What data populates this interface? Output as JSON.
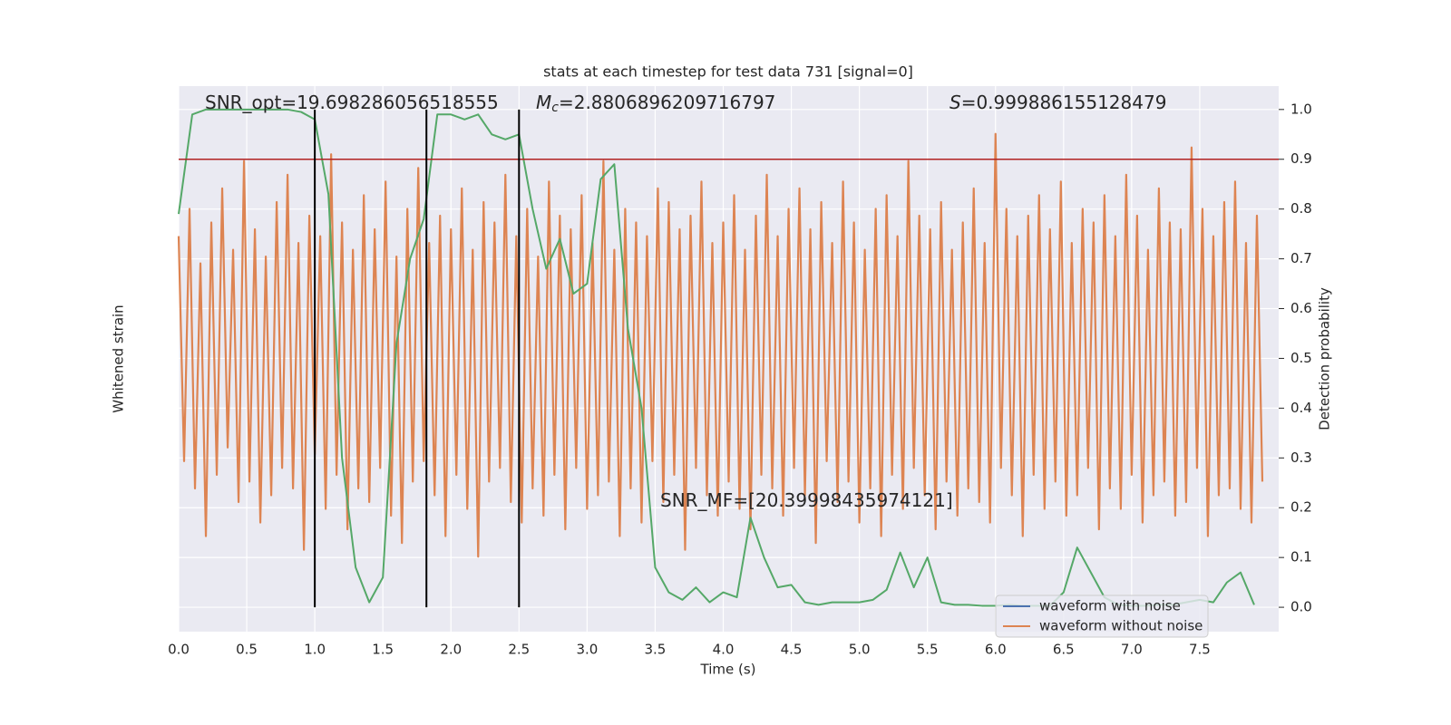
{
  "chart_data": {
    "type": "line",
    "title": "stats at each timestep for test data 731 [signal=0]",
    "xlabel": "Time (s)",
    "ylabel": "Whitened strain",
    "y2label": "Detection probability",
    "xlim": [
      0,
      8.08
    ],
    "xticks": [
      {
        "value": 0,
        "label": "0.0"
      },
      0.5,
      {
        "value": 1,
        "label": "1.0"
      },
      1.5,
      {
        "value": 2,
        "label": "2.0"
      },
      2.5,
      {
        "value": 3,
        "label": "3.0"
      },
      3.5,
      {
        "value": 4,
        "label": "4.0"
      },
      4.5,
      {
        "value": 5,
        "label": "5.0"
      },
      5.5,
      {
        "value": 6,
        "label": "6.0"
      },
      6.5,
      {
        "value": 7,
        "label": "7.0"
      },
      7.5
    ],
    "ylim": [
      -4,
      4
    ],
    "y2lim": [
      -0.049,
      1.047
    ],
    "y2ticks": [
      {
        "value": 0,
        "label": "0.0"
      },
      0.1,
      0.2,
      0.3,
      0.4,
      0.5,
      0.6,
      0.7,
      0.8,
      0.9,
      {
        "value": 1,
        "label": "1.0"
      }
    ],
    "grid": true,
    "series": [
      {
        "color": "#dd8452",
        "x": [
          0,
          0.04,
          0.08,
          0.12,
          0.16,
          0.2,
          0.24,
          0.28,
          0.32,
          0.36,
          0.4,
          0.44,
          0.48,
          0.52,
          0.56,
          0.6,
          0.64,
          0.68,
          0.72,
          0.76,
          0.8,
          0.84,
          0.88,
          0.92,
          0.96,
          1,
          1.04,
          1.08,
          1.12,
          1.16,
          1.2,
          1.24,
          1.28,
          1.32,
          1.36,
          1.4,
          1.44,
          1.48,
          1.52,
          1.56,
          1.6,
          1.64,
          1.68,
          1.72,
          1.76,
          1.8,
          1.84,
          1.88,
          1.92,
          1.96,
          2,
          2.04,
          2.08,
          2.12,
          2.16,
          2.2,
          2.24,
          2.28,
          2.32,
          2.36,
          2.4,
          2.44,
          2.48,
          2.52,
          2.56,
          2.6,
          2.64,
          2.68,
          2.72,
          2.76,
          2.8,
          2.84,
          2.88,
          2.92,
          2.96,
          3,
          3.04,
          3.08,
          3.12,
          3.16,
          3.2,
          3.24,
          3.28,
          3.32,
          3.36,
          3.4,
          3.44,
          3.48,
          3.52,
          3.56,
          3.6,
          3.64,
          3.68,
          3.72,
          3.76,
          3.8,
          3.84,
          3.88,
          3.92,
          3.96,
          4,
          4.04,
          4.08,
          4.12,
          4.16,
          4.2,
          4.24,
          4.28,
          4.32,
          4.36,
          4.4,
          4.44,
          4.48,
          4.52,
          4.56,
          4.6,
          4.64,
          4.68,
          4.72,
          4.76,
          4.8,
          4.84,
          4.88,
          4.92,
          4.96,
          5,
          5.04,
          5.08,
          5.12,
          5.16,
          5.2,
          5.24,
          5.28,
          5.32,
          5.36,
          5.4,
          5.44,
          5.48,
          5.52,
          5.56,
          5.6,
          5.64,
          5.68,
          5.72,
          5.76,
          5.8,
          5.84,
          5.88,
          5.92,
          5.96,
          6,
          6.04,
          6.08,
          6.12,
          6.16,
          6.2,
          6.24,
          6.28,
          6.32,
          6.36,
          6.4,
          6.44,
          6.48,
          6.52,
          6.56,
          6.6,
          6.64,
          6.68,
          6.72,
          6.76,
          6.8,
          6.84,
          6.88,
          6.92,
          6.96,
          7,
          7.04,
          7.08,
          7.12,
          7.16,
          7.2,
          7.24,
          7.28,
          7.32,
          7.36,
          7.4,
          7.44,
          7.48,
          7.52,
          7.56,
          7.6,
          7.64,
          7.68,
          7.72,
          7.76,
          7.8,
          7.84,
          7.88,
          7.92,
          7.96
        ],
        "values": [
          1.8,
          -1.5,
          2.2,
          -1.9,
          1.4,
          -2.6,
          2.0,
          -1.7,
          2.5,
          -1.3,
          1.6,
          -2.1,
          2.9,
          -1.8,
          1.9,
          -2.4,
          1.5,
          -2.0,
          2.3,
          -1.6,
          2.7,
          -1.9,
          1.7,
          -2.8,
          2.1,
          -1.4,
          1.8,
          -2.2,
          3.0,
          -1.7,
          2.0,
          -2.5,
          1.6,
          -1.9,
          2.4,
          -2.1,
          1.9,
          -1.6,
          2.6,
          -2.3,
          1.5,
          -2.7,
          2.2,
          -1.8,
          2.8,
          -1.5,
          1.7,
          -2.0,
          2.1,
          -2.6,
          1.9,
          -1.7,
          2.5,
          -2.2,
          1.6,
          -2.9,
          2.3,
          -1.8,
          2.0,
          -1.6,
          2.7,
          -2.1,
          1.8,
          -2.4,
          2.2,
          -1.9,
          1.5,
          -2.3,
          2.6,
          -1.7,
          2.1,
          -2.5,
          1.9,
          -1.6,
          2.4,
          -2.2,
          1.7,
          -2.0,
          2.9,
          -1.8,
          1.6,
          -2.6,
          2.2,
          -1.9,
          2.0,
          -2.4,
          1.8,
          -1.5,
          2.5,
          -2.1,
          2.3,
          -1.7,
          1.9,
          -2.8,
          2.1,
          -1.6,
          2.6,
          -2.0,
          1.7,
          -2.3,
          2.0,
          -1.8,
          2.4,
          -2.2,
          1.6,
          -2.5,
          2.1,
          -1.7,
          2.7,
          -1.9,
          1.8,
          -2.3,
          2.2,
          -1.6,
          2.5,
          -2.0,
          1.9,
          -2.7,
          2.3,
          -1.5,
          1.7,
          -2.1,
          2.6,
          -1.8,
          2.0,
          -2.4,
          1.6,
          -1.9,
          2.2,
          -2.6,
          2.4,
          -1.7,
          1.8,
          -2.2,
          2.9,
          -1.6,
          2.1,
          -2.0,
          1.9,
          -2.5,
          2.3,
          -1.8,
          1.6,
          -2.3,
          2.0,
          -1.9,
          2.5,
          -2.1,
          1.7,
          -2.4,
          3.3,
          -1.6,
          2.2,
          -2.0,
          1.8,
          -2.6,
          2.1,
          -1.7,
          2.4,
          -2.2,
          1.9,
          -1.8,
          2.6,
          -2.3,
          1.7,
          -2.0,
          2.2,
          -1.6,
          2.0,
          -2.5,
          2.4,
          -1.9,
          1.8,
          -2.2,
          2.7,
          -1.7,
          2.1,
          -2.4,
          1.6,
          -2.0,
          2.5,
          -1.8,
          2.0,
          -2.3,
          1.9,
          -2.1,
          3.1,
          -1.6,
          2.2,
          -2.6,
          1.8,
          -2.0,
          2.3,
          -1.9,
          2.6,
          -2.2,
          1.7,
          -2.4,
          2.1,
          -1.8
        ]
      },
      {
        "axis": "y2",
        "color": "#55a868",
        "x": [
          0,
          0.1,
          0.2,
          0.3,
          0.4,
          0.5,
          0.6,
          0.7,
          0.8,
          0.9,
          1,
          1.1,
          1.2,
          1.3,
          1.4,
          1.5,
          1.6,
          1.7,
          1.8,
          1.9,
          2,
          2.1,
          2.2,
          2.3,
          2.4,
          2.5,
          2.6,
          2.7,
          2.8,
          2.9,
          3,
          3.1,
          3.2,
          3.3,
          3.4,
          3.5,
          3.6,
          3.7,
          3.8,
          3.9,
          4,
          4.1,
          4.2,
          4.3,
          4.4,
          4.5,
          4.6,
          4.7,
          4.8,
          4.9,
          5,
          5.1,
          5.2,
          5.3,
          5.4,
          5.5,
          5.6,
          5.7,
          5.8,
          5.9,
          6,
          6.1,
          6.2,
          6.3,
          6.4,
          6.5,
          6.6,
          6.7,
          6.8,
          6.9,
          7,
          7.1,
          7.2,
          7.3,
          7.4,
          7.5,
          7.6,
          7.7,
          7.8,
          7.9
        ],
        "values": [
          0.79,
          0.99,
          1.0,
          1.0,
          1.0,
          1.0,
          1.0,
          1.0,
          1.0,
          0.995,
          0.98,
          0.83,
          0.3,
          0.08,
          0.01,
          0.06,
          0.53,
          0.7,
          0.78,
          0.99,
          0.99,
          0.98,
          0.99,
          0.95,
          0.94,
          0.95,
          0.8,
          0.68,
          0.74,
          0.63,
          0.65,
          0.86,
          0.89,
          0.56,
          0.4,
          0.08,
          0.03,
          0.015,
          0.04,
          0.01,
          0.03,
          0.02,
          0.18,
          0.1,
          0.04,
          0.045,
          0.01,
          0.005,
          0.01,
          0.01,
          0.01,
          0.015,
          0.035,
          0.11,
          0.04,
          0.1,
          0.01,
          0.005,
          0.005,
          0.003,
          0.003,
          0.005,
          0.003,
          0.003,
          0.003,
          0.03,
          0.12,
          0.07,
          0.02,
          0.005,
          0.003,
          0.003,
          0.005,
          0.005,
          0.01,
          0.015,
          0.01,
          0.05,
          0.07,
          0.005
        ]
      }
    ],
    "hline": {
      "y": 0.9,
      "color": "#b22222"
    },
    "vlines": {
      "x": [
        1.0,
        1.82,
        2.5
      ],
      "ymin": 0,
      "ymax": 1.0,
      "color": "#000000"
    },
    "annotations": [
      {
        "text": "SNR_opt=19.698286056518555"
      },
      {
        "symbol": "M",
        "subscript": "c",
        "text": "=2.8806896209716797"
      },
      {
        "symbol": "S",
        "text": "=0.999886155128479"
      },
      {
        "text": "SNR_MF=[20.39998435974121]"
      }
    ],
    "legend": {
      "loc": "lower right",
      "entries": [
        {
          "name": "waveform with noise",
          "color": "#4c72b0"
        },
        {
          "name": "waveform without noise",
          "color": "#dd8452"
        }
      ]
    }
  }
}
